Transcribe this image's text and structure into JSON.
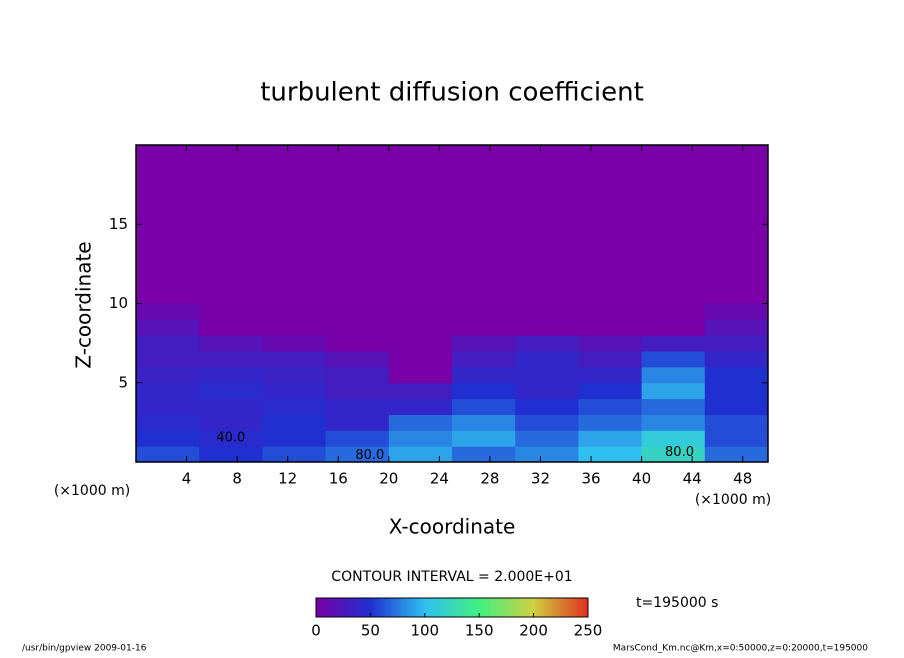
{
  "chart_data": {
    "type": "contour",
    "title": "turbulent diffusion coefficient",
    "x_label": "X-coordinate",
    "y_label": "Z-coordinate",
    "x_unit": "(×1000 m)",
    "y_unit": "(×1000 m)",
    "xlim": [
      0,
      50
    ],
    "ylim": [
      0,
      20
    ],
    "xticks": [
      4,
      8,
      12,
      16,
      20,
      24,
      28,
      32,
      36,
      40,
      44,
      48
    ],
    "yticks": [
      5,
      10,
      15
    ],
    "x": [
      2.5,
      7.5,
      12.5,
      17.5,
      22.5,
      27.5,
      32.5,
      37.5,
      42.5,
      47.5
    ],
    "y": [
      0.5,
      1.5,
      2.5,
      3.5,
      4.5,
      5.5,
      6.5,
      7.5,
      8.5,
      9.5
    ],
    "z": [
      [
        60,
        50,
        60,
        70,
        90,
        70,
        80,
        100,
        120,
        70
      ],
      [
        50,
        45,
        50,
        60,
        80,
        90,
        70,
        90,
        110,
        60
      ],
      [
        45,
        40,
        50,
        40,
        70,
        80,
        60,
        70,
        80,
        60
      ],
      [
        40,
        40,
        45,
        40,
        40,
        60,
        50,
        60,
        70,
        50
      ],
      [
        40,
        45,
        40,
        30,
        30,
        50,
        40,
        50,
        90,
        50
      ],
      [
        35,
        40,
        35,
        30,
        0,
        40,
        40,
        40,
        80,
        50
      ],
      [
        30,
        30,
        30,
        20,
        0,
        30,
        40,
        30,
        60,
        40
      ],
      [
        30,
        20,
        10,
        0,
        0,
        20,
        30,
        20,
        30,
        30
      ],
      [
        20,
        0,
        0,
        0,
        0,
        0,
        0,
        0,
        0,
        20
      ],
      [
        10,
        0,
        0,
        0,
        0,
        0,
        0,
        0,
        0,
        10
      ]
    ],
    "background_color": "#7a00a8",
    "colormap": [
      "#7800a8",
      "#2030d0",
      "#30c0f0",
      "#40f080",
      "#d0d040",
      "#e03020"
    ],
    "clim": [
      0,
      250
    ],
    "cticks": [
      0,
      50,
      100,
      150,
      200,
      250
    ],
    "contour_interval": "CONTOUR INTERVAL = 2.000E+01",
    "time_label": "t=195000 s",
    "contour_labels": [
      {
        "text": "40.0",
        "x": 7.5,
        "y": 1.5
      },
      {
        "text": "80.0",
        "x": 18.5,
        "y": 0.4
      },
      {
        "text": "80.0",
        "x": 43,
        "y": 0.6
      }
    ],
    "footer_left": "/usr/bin/gpview   2009-01-16",
    "footer_right": "MarsCond_Km.nc@Km,x=0:50000,z=0:20000,t=195000"
  }
}
